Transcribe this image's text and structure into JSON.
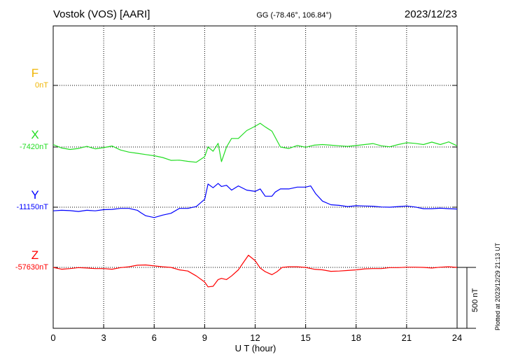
{
  "chart_data": {
    "type": "line",
    "title": "Vostok (VOS)  [AARI]",
    "coords_label": "GG (-78.46°, 106.84°)",
    "date": "2023/12/23",
    "xlabel": "U T (hour)",
    "xlim": [
      0,
      24
    ],
    "xticks": [
      "0",
      "3",
      "6",
      "9",
      "12",
      "15",
      "18",
      "21",
      "24"
    ],
    "scale_label": "500 nT",
    "plotted_note": "Plotted at 2023/12/29 21:13 UT",
    "grid": true,
    "series": [
      {
        "name": "F",
        "baseline_label": "0nT",
        "color": "#f0b400",
        "x": [],
        "y": []
      },
      {
        "name": "X",
        "baseline_label": "-7420nT",
        "color": "#22dd22",
        "x": [
          0,
          0.5,
          1,
          1.5,
          2,
          2.5,
          3,
          3.5,
          4,
          4.5,
          5,
          5.5,
          6,
          6.5,
          7,
          7.5,
          8,
          8.5,
          9,
          9.2,
          9.5,
          9.8,
          10,
          10.3,
          10.6,
          11,
          11.5,
          12,
          12.3,
          12.6,
          13,
          13.5,
          14,
          14.5,
          15,
          15.5,
          16,
          16.5,
          17,
          17.5,
          18,
          18.5,
          19,
          19.5,
          20,
          20.5,
          21,
          21.5,
          22,
          22.5,
          23,
          23.5,
          24
        ],
        "y": [
          -7400,
          -7428,
          -7440,
          -7432,
          -7415,
          -7435,
          -7425,
          -7412,
          -7445,
          -7462,
          -7472,
          -7482,
          -7492,
          -7506,
          -7530,
          -7528,
          -7538,
          -7545,
          -7500,
          -7420,
          -7455,
          -7390,
          -7540,
          -7420,
          -7350,
          -7350,
          -7285,
          -7250,
          -7225,
          -7255,
          -7290,
          -7420,
          -7432,
          -7408,
          -7422,
          -7405,
          -7400,
          -7405,
          -7410,
          -7415,
          -7408,
          -7400,
          -7392,
          -7410,
          -7418,
          -7400,
          -7385,
          -7390,
          -7400,
          -7380,
          -7400,
          -7378,
          -7410
        ]
      },
      {
        "name": "Y",
        "baseline_label": "-11150nT",
        "color": "#0000ff",
        "x": [
          0,
          0.5,
          1,
          1.5,
          2,
          2.5,
          3,
          3.5,
          4,
          4.5,
          5,
          5.2,
          5.5,
          6,
          6.5,
          7,
          7.5,
          8,
          8.5,
          9,
          9.2,
          9.5,
          9.8,
          10,
          10.3,
          10.6,
          11,
          11.5,
          12,
          12.3,
          12.6,
          13,
          13.2,
          13.5,
          14,
          14.5,
          15,
          15.3,
          15.6,
          16,
          16.5,
          17,
          17.5,
          18,
          18.5,
          19,
          19.5,
          20,
          20.5,
          21,
          21.5,
          22,
          22.5,
          23,
          23.5,
          24
        ],
        "y": [
          -11180,
          -11175,
          -11178,
          -11185,
          -11175,
          -11180,
          -11170,
          -11168,
          -11160,
          -11160,
          -11175,
          -11195,
          -11220,
          -11235,
          -11215,
          -11200,
          -11160,
          -11160,
          -11145,
          -11085,
          -10960,
          -10990,
          -10955,
          -10980,
          -10970,
          -11010,
          -10975,
          -11010,
          -11020,
          -11000,
          -11060,
          -11060,
          -11025,
          -11000,
          -11000,
          -10985,
          -10985,
          -10975,
          -11040,
          -11100,
          -11130,
          -11135,
          -11145,
          -11138,
          -11140,
          -11142,
          -11148,
          -11150,
          -11145,
          -11140,
          -11148,
          -11162,
          -11162,
          -11158,
          -11162,
          -11165
        ]
      },
      {
        "name": "Z",
        "baseline_label": "-57630nT",
        "color": "#ff0000",
        "x": [
          0,
          0.5,
          1,
          1.5,
          2,
          2.5,
          3,
          3.5,
          4,
          4.5,
          5,
          5.5,
          6,
          6.5,
          7,
          7.5,
          8,
          8.5,
          9,
          9.2,
          9.5,
          9.8,
          10,
          10.3,
          10.6,
          11,
          11.3,
          11.6,
          12,
          12.3,
          12.6,
          13,
          13.3,
          13.6,
          14,
          14.5,
          15,
          15.5,
          16,
          16.5,
          17,
          17.5,
          18,
          18.5,
          19,
          19.5,
          20,
          20.5,
          21,
          21.5,
          22,
          22.5,
          23,
          23.5,
          24
        ],
        "y": [
          -57630,
          -57645,
          -57640,
          -57632,
          -57635,
          -57640,
          -57640,
          -57645,
          -57632,
          -57625,
          -57612,
          -57610,
          -57618,
          -57625,
          -57630,
          -57650,
          -57660,
          -57700,
          -57750,
          -57790,
          -57785,
          -57730,
          -57720,
          -57730,
          -57700,
          -57650,
          -57590,
          -57530,
          -57575,
          -57635,
          -57665,
          -57690,
          -57665,
          -57630,
          -57625,
          -57625,
          -57630,
          -57645,
          -57650,
          -57662,
          -57660,
          -57655,
          -57650,
          -57642,
          -57640,
          -57640,
          -57632,
          -57632,
          -57628,
          -57628,
          -57630,
          -57635,
          -57628,
          -57625,
          -57630
        ]
      }
    ]
  }
}
